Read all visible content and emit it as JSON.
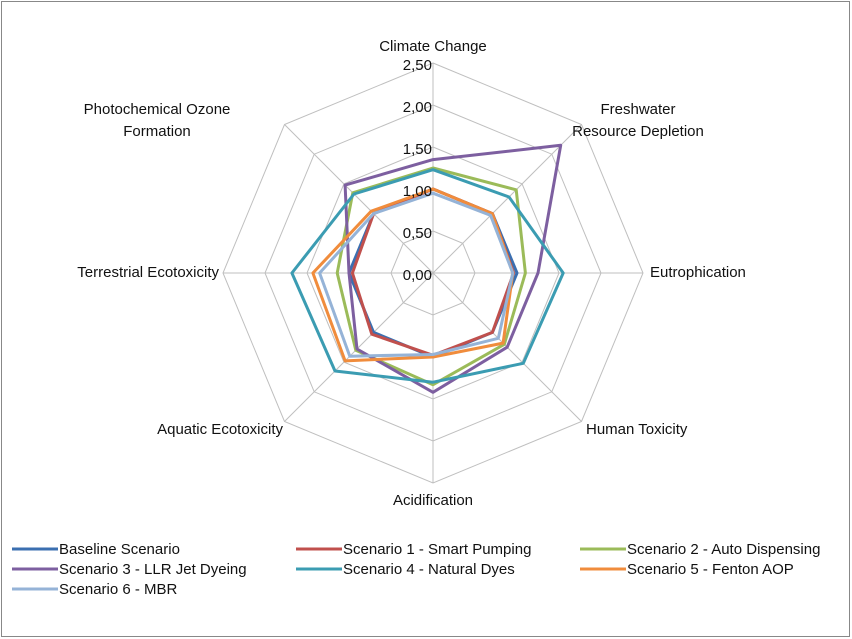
{
  "chart_data": {
    "type": "radar",
    "categories": [
      "Climate Change",
      "Freshwater Resource Depletion",
      "Eutrophication",
      "Human Toxicity",
      "Acidification",
      "Aquatic Ecotoxicity",
      "Terrestrial Ecotoxicity",
      "Photochemical Ozone Formation"
    ],
    "rlim": [
      0,
      2.5
    ],
    "rticks": [
      {
        "value": 0,
        "label": "0,00"
      },
      {
        "value": 0.5,
        "label": "0,50"
      },
      {
        "value": 1,
        "label": "1,00"
      },
      {
        "value": 1.5,
        "label": "1,50"
      },
      {
        "value": 2,
        "label": "2,00"
      },
      {
        "value": 2.5,
        "label": "2,50"
      }
    ],
    "grid": true,
    "legend": "bottom",
    "series": [
      {
        "name": "Baseline Scenario",
        "color": "#3b6fb0",
        "values": [
          1,
          1,
          1,
          1,
          1,
          1,
          1,
          1
        ]
      },
      {
        "name": "Scenario 1 - Smart Pumping",
        "color": "#c0504d",
        "values": [
          1.0,
          1.0,
          0.96,
          1.0,
          0.98,
          1.03,
          0.96,
          1.0
        ]
      },
      {
        "name": "Scenario 2 - Auto Dispensing",
        "color": "#9bbb59",
        "values": [
          1.25,
          1.4,
          1.1,
          1.2,
          1.33,
          1.3,
          1.14,
          1.35
        ]
      },
      {
        "name": "Scenario 3 - LLR Jet Dyeing",
        "color": "#7d5fa0",
        "values": [
          1.35,
          2.15,
          1.25,
          1.25,
          1.42,
          1.28,
          1.0,
          1.48
        ]
      },
      {
        "name": "Scenario 4 - Natural Dyes",
        "color": "#3b9cb2",
        "values": [
          1.23,
          1.28,
          1.55,
          1.52,
          1.3,
          1.65,
          1.68,
          1.33
        ]
      },
      {
        "name": "Scenario 5 - Fenton AOP",
        "color": "#f08c3c",
        "values": [
          1.0,
          1.0,
          0.95,
          1.18,
          1.0,
          1.48,
          1.43,
          1.04
        ]
      },
      {
        "name": "Scenario 6 - MBR",
        "color": "#95b3d7",
        "values": [
          0.95,
          0.97,
          0.95,
          1.1,
          0.97,
          1.4,
          1.35,
          1.0
        ]
      }
    ]
  }
}
